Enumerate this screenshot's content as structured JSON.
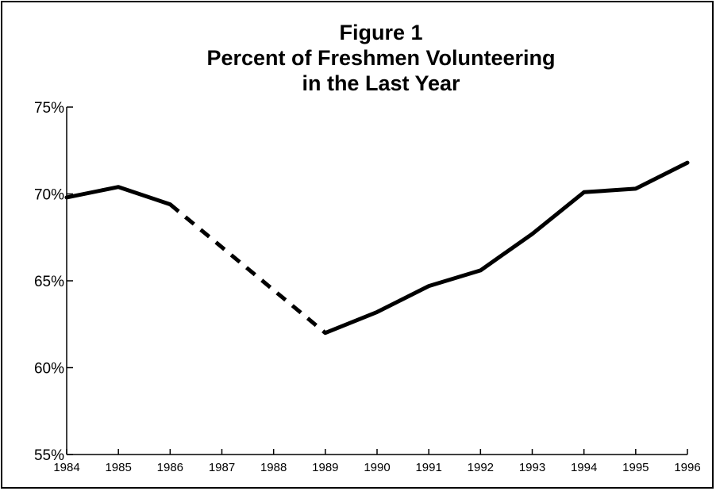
{
  "chart_data": {
    "type": "line",
    "title": [
      "Figure 1",
      "Percent of Freshmen Volunteering",
      "in the Last Year"
    ],
    "xlabel": "",
    "ylabel": "",
    "x": [
      1984,
      1985,
      1986,
      1987,
      1988,
      1989,
      1990,
      1991,
      1992,
      1993,
      1994,
      1995,
      1996
    ],
    "ylim": [
      55,
      75
    ],
    "y_ticks": [
      75,
      70,
      65,
      60,
      55
    ],
    "y_tick_labels": [
      "75%",
      "70%",
      "65%",
      "60%",
      "55%"
    ],
    "x_tick_labels": [
      "1984",
      "1985",
      "1986",
      "1987",
      "1988",
      "1989",
      "1990",
      "1991",
      "1992",
      "1993",
      "1994",
      "1995",
      "1996"
    ],
    "grid": false,
    "series": [
      {
        "points": [
          {
            "x": 1984,
            "y": 69.8
          },
          {
            "x": 1985,
            "y": 70.4
          },
          {
            "x": 1986,
            "y": 69.4
          },
          {
            "x": 1989,
            "y": 62.0
          },
          {
            "x": 1990,
            "y": 63.2
          },
          {
            "x": 1991,
            "y": 64.7
          },
          {
            "x": 1992,
            "y": 65.6
          },
          {
            "x": 1993,
            "y": 67.7
          },
          {
            "x": 1994,
            "y": 70.1
          },
          {
            "x": 1995,
            "y": 70.3
          },
          {
            "x": 1996,
            "y": 71.8
          }
        ],
        "note_segments": [
          {
            "from": 1984,
            "to": 1986,
            "style": "solid"
          },
          {
            "from": 1986,
            "to": 1989,
            "style": "dashed"
          },
          {
            "from": 1989,
            "to": 1996,
            "style": "solid"
          }
        ],
        "color": "#000000"
      }
    ]
  }
}
